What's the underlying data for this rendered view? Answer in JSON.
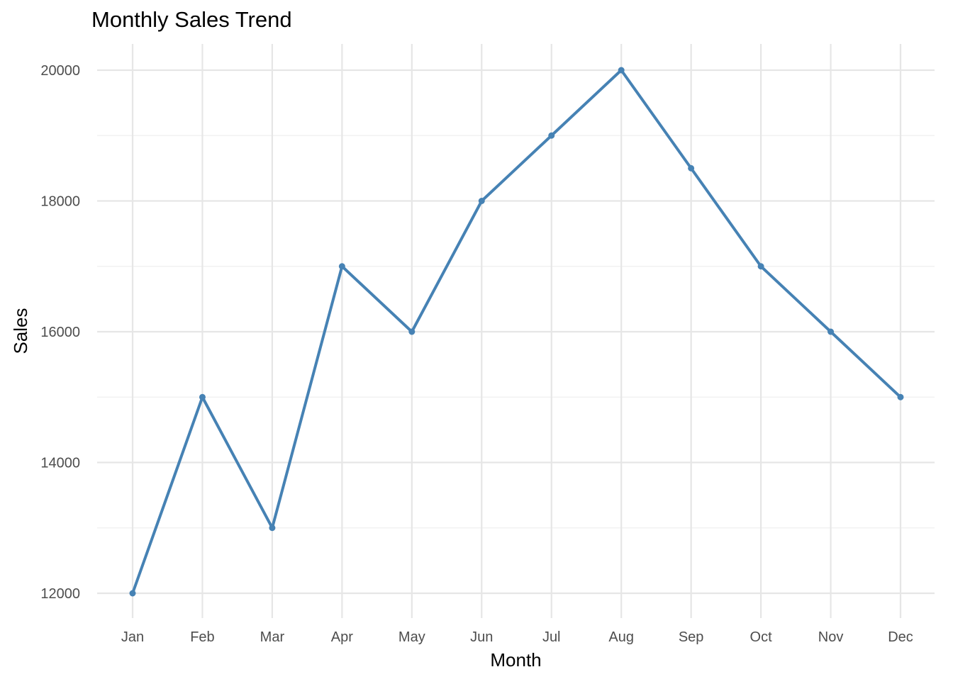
{
  "chart_data": {
    "type": "line",
    "title": "Monthly Sales Trend",
    "xlabel": "Month",
    "ylabel": "Sales",
    "categories": [
      "Jan",
      "Feb",
      "Mar",
      "Apr",
      "May",
      "Jun",
      "Jul",
      "Aug",
      "Sep",
      "Oct",
      "Nov",
      "Dec"
    ],
    "series": [
      {
        "values": [
          12000,
          15000,
          13000,
          17000,
          16000,
          18000,
          19000,
          20000,
          18500,
          17000,
          16000,
          15000
        ],
        "color": "#4682B4"
      }
    ],
    "yticks": [
      12000,
      14000,
      16000,
      18000,
      20000
    ],
    "ylim": [
      11600,
      20400
    ],
    "grid": true,
    "legend": "none"
  }
}
